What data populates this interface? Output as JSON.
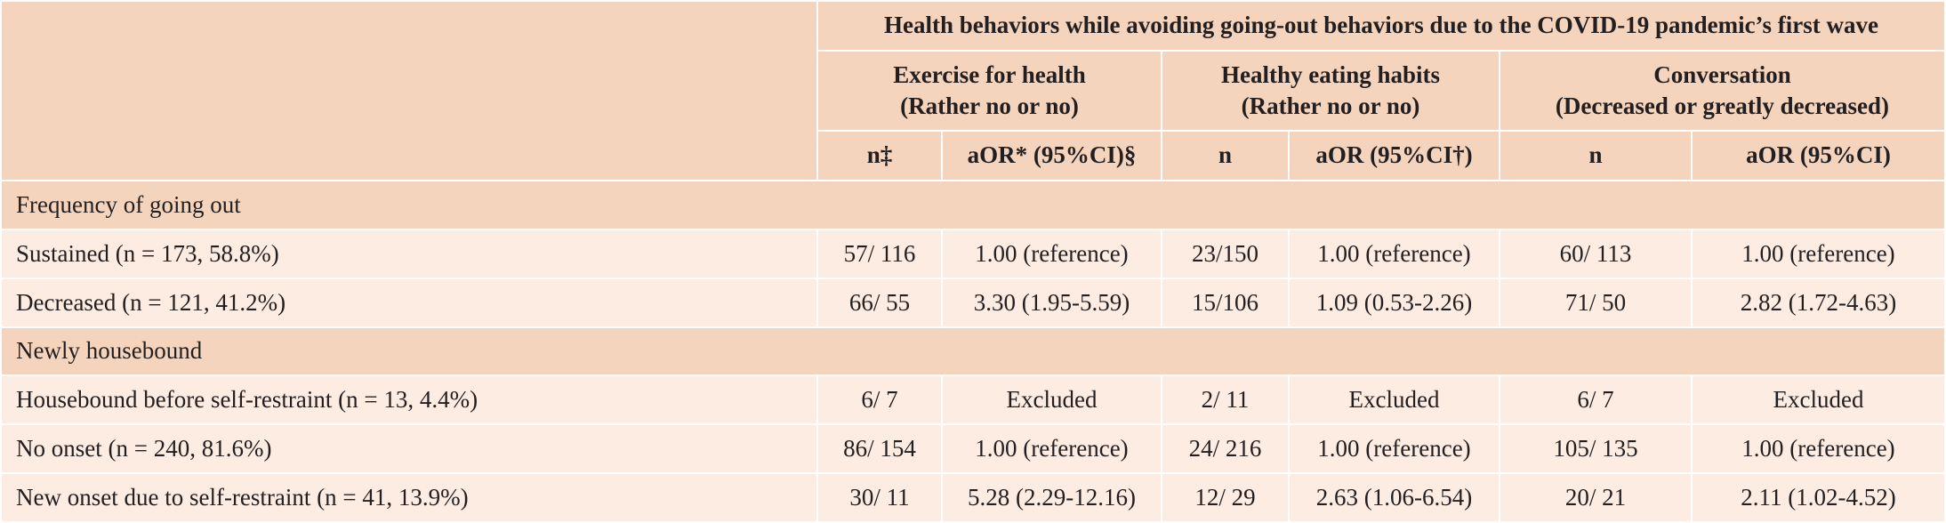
{
  "header": {
    "top": "Health behaviors while avoiding going-out behaviors due to the COVID-19 pandemic’s first wave",
    "groups": [
      {
        "line1": "Exercise for health",
        "line2": "(Rather no or no)"
      },
      {
        "line1": "Healthy eating habits",
        "line2": "(Rather no or no)"
      },
      {
        "line1": "Conversation",
        "line2": "(Decreased or greatly decreased)"
      }
    ],
    "subheaders": [
      "n‡",
      "aOR* (95%CI)§",
      "n",
      "aOR (95%CI†)",
      "n",
      "aOR (95%CI)"
    ]
  },
  "sections": [
    {
      "title": "Frequency of going out",
      "rows": [
        {
          "label": "Sustained (n = 173, 58.8%)",
          "cells": [
            "57/ 116",
            "1.00 (reference)",
            "23/150",
            "1.00 (reference)",
            "60/ 113",
            "1.00 (reference)"
          ]
        },
        {
          "label": "Decreased (n = 121, 41.2%)",
          "cells": [
            "66/ 55",
            "3.30 (1.95-5.59)",
            "15/106",
            "1.09 (0.53-2.26)",
            "71/ 50",
            "2.82 (1.72-4.63)"
          ]
        }
      ]
    },
    {
      "title": "Newly housebound",
      "rows": [
        {
          "label": "Housebound before self-restraint (n = 13, 4.4%)",
          "cells": [
            "6/ 7",
            "Excluded",
            "2/ 11",
            "Excluded",
            "6/ 7",
            "Excluded"
          ]
        },
        {
          "label": "No onset (n = 240, 81.6%)",
          "cells": [
            "86/ 154",
            "1.00 (reference)",
            "24/ 216",
            "1.00 (reference)",
            "105/ 135",
            "1.00 (reference)"
          ]
        },
        {
          "label": "New onset due to self-restraint (n = 41, 13.9%)",
          "cells": [
            "30/ 11",
            "5.28 (2.29-12.16)",
            "12/ 29",
            "2.63 (1.06-6.54)",
            "20/ 21",
            "2.11 (1.02-4.52)"
          ]
        }
      ]
    }
  ]
}
